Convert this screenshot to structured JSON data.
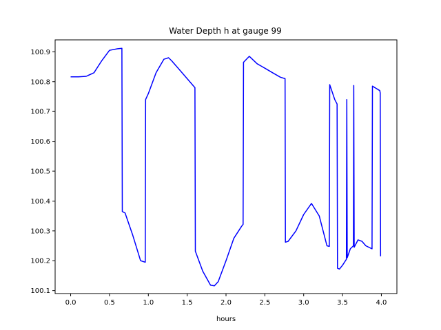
{
  "chart_data": {
    "type": "line",
    "title": "Water Depth h at gauge 99",
    "xlabel": "hours",
    "ylabel": "",
    "xlim": [
      -0.2,
      4.2
    ],
    "ylim": [
      100.09,
      100.94
    ],
    "grid": false,
    "legend": "none",
    "x_ticks": [
      0.0,
      0.5,
      1.0,
      1.5,
      2.0,
      2.5,
      3.0,
      3.5,
      4.0
    ],
    "x_tick_labels": [
      "0.0",
      "0.5",
      "1.0",
      "1.5",
      "2.0",
      "2.5",
      "3.0",
      "3.5",
      "4.0"
    ],
    "y_ticks": [
      100.1,
      100.2,
      100.3,
      100.4,
      100.5,
      100.6,
      100.7,
      100.8,
      100.9
    ],
    "y_tick_labels": [
      "100.1",
      "100.2",
      "100.3",
      "100.4",
      "100.5",
      "100.6",
      "100.7",
      "100.8",
      "100.9"
    ],
    "series": [
      {
        "color": "#0000ff",
        "x": [
          0.0,
          0.1,
          0.2,
          0.3,
          0.4,
          0.5,
          0.6,
          0.66,
          0.665,
          0.7,
          0.8,
          0.9,
          0.96,
          0.965,
          1.0,
          1.1,
          1.2,
          1.26,
          1.3,
          1.4,
          1.5,
          1.6,
          1.605,
          1.7,
          1.8,
          1.85,
          1.9,
          2.0,
          2.1,
          2.2,
          2.22,
          2.225,
          2.3,
          2.4,
          2.5,
          2.6,
          2.7,
          2.76,
          2.765,
          2.8,
          2.9,
          3.0,
          3.1,
          3.2,
          3.3,
          3.33,
          3.335,
          3.4,
          3.43,
          3.435,
          3.46,
          3.5,
          3.55,
          3.555,
          3.56,
          3.6,
          3.64,
          3.645,
          3.65,
          3.7,
          3.75,
          3.8,
          3.88,
          3.885,
          3.98,
          3.985,
          3.99
        ],
        "y": [
          100.816,
          100.816,
          100.818,
          100.83,
          100.87,
          100.905,
          100.91,
          100.912,
          100.365,
          100.36,
          100.285,
          100.2,
          100.195,
          100.74,
          100.76,
          100.83,
          100.875,
          100.88,
          100.87,
          100.84,
          100.81,
          100.78,
          100.232,
          100.165,
          100.118,
          100.116,
          100.13,
          100.2,
          100.275,
          100.315,
          100.322,
          100.865,
          100.885,
          100.86,
          100.845,
          100.83,
          100.815,
          100.81,
          100.262,
          100.265,
          100.3,
          100.355,
          100.392,
          100.35,
          100.25,
          100.248,
          100.79,
          100.74,
          100.725,
          100.175,
          100.172,
          100.185,
          100.205,
          100.74,
          100.21,
          100.24,
          100.25,
          100.787,
          100.245,
          100.27,
          100.265,
          100.25,
          100.24,
          100.785,
          100.77,
          100.762,
          100.215
        ]
      }
    ]
  }
}
